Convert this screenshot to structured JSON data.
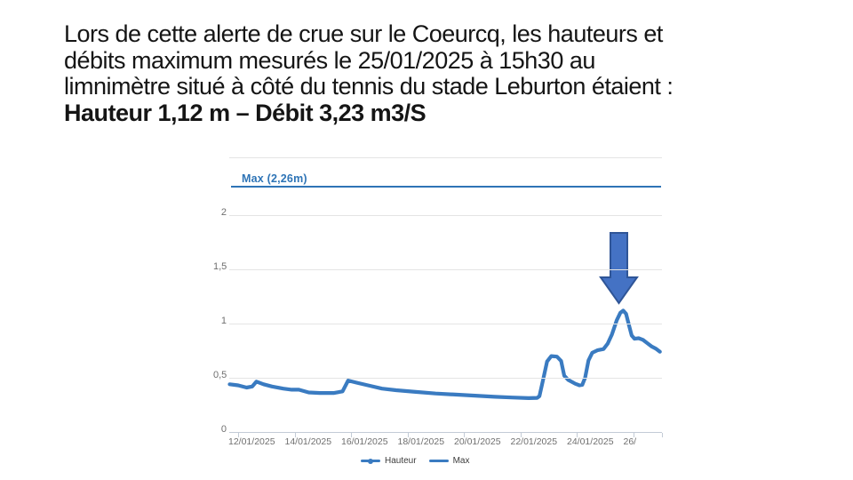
{
  "slide": {
    "text_lines": [
      "Lors de cette alerte de crue sur le Coeurcq, les hauteurs et",
      "débits maximum mesurés le 25/01/2025 à 15h30 au",
      "limnimètre situé à côté du tennis du stade Leburton étaient :"
    ],
    "highlight_line": "Hauteur 1,12 m – Débit 3,23 m3/S"
  },
  "chart": {
    "max_annotation_label": "Max (2,26m)",
    "y_axis": {
      "tick_labels": [
        "2",
        "1,5",
        "1",
        "0,5",
        "0"
      ],
      "tick_values": [
        2,
        1.5,
        1,
        0.5,
        0
      ]
    },
    "x_axis": {
      "tick_labels": [
        "12/01/2025",
        "14/01/2025",
        "16/01/2025",
        "18/01/2025",
        "20/01/2025",
        "22/01/2025",
        "24/01/2025",
        "26/"
      ]
    },
    "legend": [
      {
        "label": "Hauteur",
        "marker": "line-with-dot"
      },
      {
        "label": "Max",
        "marker": "line"
      }
    ],
    "colors": {
      "series_line": "#3a7bc1",
      "max_line": "#2e74b6",
      "max_label_text": "#2e74b6",
      "arrow_fill": "#4472c4",
      "arrow_border": "#2f5597",
      "grid_line": "#e4e4e4",
      "axis_line": "#c3cbd6",
      "axis_text": "#6f6f6f",
      "legend_text": "#3c3c3c"
    }
  },
  "chart_data": {
    "type": "line",
    "title": "",
    "xlabel": "",
    "ylabel": "",
    "x_unit": "day of January 2025 (dd/01/2025)",
    "xlim": [
      11.7,
      27.0
    ],
    "ylim": [
      0,
      2.55
    ],
    "grid": true,
    "legend_position": "bottom",
    "series": [
      {
        "name": "Hauteur",
        "points": [
          [
            11.7,
            0.44
          ],
          [
            12.0,
            0.43
          ],
          [
            12.3,
            0.41
          ],
          [
            12.5,
            0.42
          ],
          [
            12.65,
            0.465
          ],
          [
            12.9,
            0.44
          ],
          [
            13.2,
            0.42
          ],
          [
            13.6,
            0.4
          ],
          [
            13.9,
            0.39
          ],
          [
            14.15,
            0.39
          ],
          [
            14.5,
            0.365
          ],
          [
            14.9,
            0.36
          ],
          [
            15.4,
            0.36
          ],
          [
            15.7,
            0.375
          ],
          [
            15.9,
            0.475
          ],
          [
            16.2,
            0.455
          ],
          [
            16.6,
            0.43
          ],
          [
            17.1,
            0.4
          ],
          [
            17.6,
            0.385
          ],
          [
            18.3,
            0.37
          ],
          [
            19.0,
            0.355
          ],
          [
            19.7,
            0.345
          ],
          [
            20.4,
            0.335
          ],
          [
            21.1,
            0.325
          ],
          [
            21.7,
            0.318
          ],
          [
            22.3,
            0.312
          ],
          [
            22.6,
            0.315
          ],
          [
            22.68,
            0.33
          ],
          [
            22.8,
            0.47
          ],
          [
            22.95,
            0.65
          ],
          [
            23.1,
            0.7
          ],
          [
            23.3,
            0.695
          ],
          [
            23.45,
            0.655
          ],
          [
            23.56,
            0.52
          ],
          [
            23.7,
            0.48
          ],
          [
            23.95,
            0.445
          ],
          [
            24.1,
            0.43
          ],
          [
            24.2,
            0.435
          ],
          [
            24.3,
            0.5
          ],
          [
            24.42,
            0.66
          ],
          [
            24.55,
            0.73
          ],
          [
            24.75,
            0.755
          ],
          [
            24.95,
            0.765
          ],
          [
            25.1,
            0.815
          ],
          [
            25.25,
            0.9
          ],
          [
            25.42,
            1.03
          ],
          [
            25.55,
            1.1
          ],
          [
            25.65,
            1.12
          ],
          [
            25.75,
            1.09
          ],
          [
            25.85,
            0.99
          ],
          [
            25.95,
            0.89
          ],
          [
            26.05,
            0.86
          ],
          [
            26.2,
            0.865
          ],
          [
            26.35,
            0.85
          ],
          [
            26.5,
            0.82
          ],
          [
            26.65,
            0.79
          ],
          [
            26.8,
            0.77
          ],
          [
            26.95,
            0.74
          ]
        ]
      },
      {
        "name": "Max",
        "type": "horizontal-line",
        "value": 2.26
      }
    ],
    "annotations": [
      {
        "type": "down-arrow",
        "x_day": 25.6,
        "points_to_value": 1.12
      }
    ]
  }
}
